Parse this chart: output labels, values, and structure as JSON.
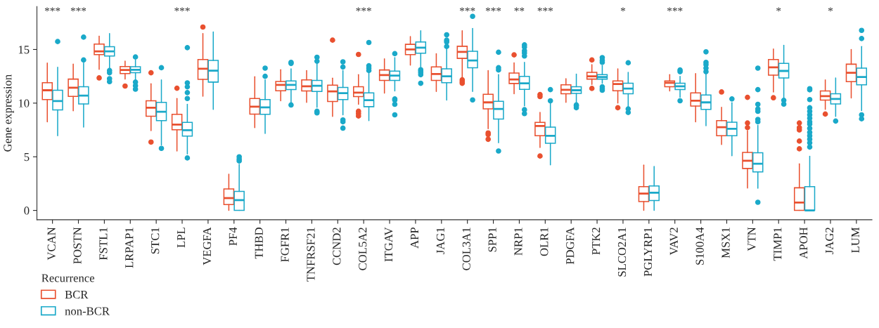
{
  "chart_data": {
    "type": "box",
    "ylabel": "Gene expression",
    "legend_title": "Recurrence",
    "legend": "bottom left",
    "grid": false,
    "ylim": [
      -0.87,
      19
    ],
    "yticks": [
      0,
      5,
      10,
      15
    ],
    "categories": [
      "VCAN",
      "POSTN",
      "FSTL1",
      "LRPAP1",
      "STC1",
      "LPL",
      "VEGFA",
      "PF4",
      "THBD",
      "FGFR1",
      "TNFRSF21",
      "CCND2",
      "COL5A2",
      "ITGAV",
      "APP",
      "JAG1",
      "COL3A1",
      "SPP1",
      "NRP1",
      "OLR1",
      "PDGFA",
      "PTK2",
      "SLCO2A1",
      "PGLYRP1",
      "VAV2",
      "S100A4",
      "MSX1",
      "VTN",
      "TIMP1",
      "APOH",
      "JAG2",
      "LUM"
    ],
    "series": [
      {
        "name": "BCR",
        "color": "#e9502f",
        "boxes": [
          {
            "low": 8.26,
            "q1": 10.33,
            "median": 11.2,
            "q3": 11.9,
            "high": 13.74
          },
          {
            "low": 9.28,
            "q1": 10.63,
            "median": 11.43,
            "q3": 12.24,
            "high": 13.63
          },
          {
            "low": 13.15,
            "q1": 14.52,
            "median": 14.83,
            "q3": 15.5,
            "high": 16.24,
            "outliers": [
              12.35
            ]
          },
          {
            "low": 12.24,
            "q1": 12.76,
            "median": 13.09,
            "q3": 13.41,
            "high": 13.91,
            "outliers": [
              11.59
            ]
          },
          {
            "low": 7.43,
            "q1": 8.78,
            "median": 9.57,
            "q3": 10.22,
            "high": 11.8,
            "outliers": [
              12.83,
              6.37
            ]
          },
          {
            "low": 5.54,
            "q1": 7.52,
            "median": 8.0,
            "q3": 8.96,
            "high": 10.43,
            "outliers": [
              11.39
            ]
          },
          {
            "low": 10.65,
            "q1": 12.22,
            "median": 13.2,
            "q3": 14.07,
            "high": 16.48,
            "outliers": [
              17.09
            ]
          },
          {
            "low": 0,
            "q1": 0.54,
            "median": 1.15,
            "q3": 2.0,
            "high": 3.37
          },
          {
            "low": 7.72,
            "q1": 8.98,
            "median": 9.67,
            "q3": 10.43,
            "high": 12.46
          },
          {
            "low": 10.22,
            "q1": 11.15,
            "median": 11.7,
            "q3": 12.02,
            "high": 13.11
          },
          {
            "low": 10.07,
            "q1": 11.13,
            "median": 11.57,
            "q3": 12.17,
            "high": 13.04
          },
          {
            "low": 8.76,
            "q1": 10.15,
            "median": 11.09,
            "q3": 11.67,
            "high": 12.33,
            "outliers": [
              15.87
            ]
          },
          {
            "low": 9.89,
            "q1": 10.61,
            "median": 10.98,
            "q3": 11.52,
            "high": 12.65,
            "outliers": [
              14.54,
              9.24,
              9.02,
              8.8
            ]
          },
          {
            "low": 10.93,
            "q1": 12.11,
            "median": 12.61,
            "q3": 13.09,
            "high": 14.13
          },
          {
            "low": 13.54,
            "q1": 14.52,
            "median": 15.0,
            "q3": 15.48,
            "high": 16.2
          },
          {
            "low": 11.09,
            "q1": 12.11,
            "median": 12.72,
            "q3": 13.37,
            "high": 14.61
          },
          {
            "low": 12.39,
            "q1": 14.17,
            "median": 14.78,
            "q3": 15.3,
            "high": 16.74,
            "outliers": [
              12.17,
              12.0,
              11.85
            ]
          },
          {
            "low": 7.61,
            "q1": 9.46,
            "median": 10.07,
            "q3": 10.83,
            "high": 13.04,
            "outliers": [
              7.22,
              7.07,
              6.63
            ]
          },
          {
            "low": 10.87,
            "q1": 11.83,
            "median": 12.2,
            "q3": 12.8,
            "high": 13.76,
            "outliers": [
              14.5
            ]
          },
          {
            "low": 5.87,
            "q1": 6.96,
            "median": 7.87,
            "q3": 8.2,
            "high": 9.13,
            "outliers": [
              10.8,
              10.61,
              5.07
            ]
          },
          {
            "low": 10.07,
            "q1": 10.87,
            "median": 11.24,
            "q3": 11.7,
            "high": 12.28
          },
          {
            "low": 11.74,
            "q1": 12.24,
            "median": 12.5,
            "q3": 12.87,
            "high": 13.59,
            "outliers": [
              14.02,
              11.37
            ]
          },
          {
            "low": 10.0,
            "q1": 11.15,
            "median": 11.78,
            "q3": 12.07,
            "high": 13.2,
            "outliers": [
              9.57
            ]
          },
          {
            "low": 0,
            "q1": 0.83,
            "median": 1.57,
            "q3": 2.22,
            "high": 4.22
          },
          {
            "low": 11.13,
            "q1": 11.52,
            "median": 11.89,
            "q3": 12.07,
            "high": 12.65
          },
          {
            "low": 8.26,
            "q1": 9.72,
            "median": 10.22,
            "q3": 10.96,
            "high": 12.76
          },
          {
            "low": 6.15,
            "q1": 6.96,
            "median": 7.76,
            "q3": 8.37,
            "high": 9.61,
            "outliers": [
              11.04
            ]
          },
          {
            "low": 2.09,
            "q1": 3.91,
            "median": 4.63,
            "q3": 5.41,
            "high": 7.43,
            "outliers": [
              10.54,
              8.15,
              7.72
            ]
          },
          {
            "low": 11.04,
            "q1": 12.61,
            "median": 13.33,
            "q3": 14.07,
            "high": 15.04,
            "outliers": [
              10.5
            ]
          },
          {
            "low": 0,
            "q1": 0,
            "median": 0.74,
            "q3": 2.11,
            "high": 4.35,
            "outliers": [
              8.15,
              7.72,
              7.5,
              6.46,
              5.74
            ]
          },
          {
            "low": 9.41,
            "q1": 10.28,
            "median": 10.65,
            "q3": 11.13,
            "high": 12.17,
            "outliers": [
              8.98
            ]
          },
          {
            "low": 10.48,
            "q1": 12.0,
            "median": 12.83,
            "q3": 13.63,
            "high": 15.0
          }
        ]
      },
      {
        "name": "non-BCR",
        "color": "#1aa9c9",
        "boxes": [
          {
            "low": 6.96,
            "q1": 9.37,
            "median": 10.2,
            "q3": 11.2,
            "high": 13.35,
            "outliers": [
              15.74
            ]
          },
          {
            "low": 7.76,
            "q1": 9.93,
            "median": 10.7,
            "q3": 11.52,
            "high": 13.74,
            "outliers": [
              16.15,
              14.02
            ]
          },
          {
            "low": 13.15,
            "q1": 14.39,
            "median": 14.83,
            "q3": 15.26,
            "high": 16.48,
            "outliers": [
              13.04,
              12.83,
              12.28,
              12.0
            ]
          },
          {
            "low": 12.07,
            "q1": 12.83,
            "median": 13.11,
            "q3": 13.39,
            "high": 14.02,
            "outliers": [
              14.3,
              11.96,
              11.63,
              11.3
            ]
          },
          {
            "low": 6.09,
            "q1": 8.37,
            "median": 9.2,
            "q3": 10.07,
            "high": 12.17,
            "outliers": [
              13.3,
              5.78
            ]
          },
          {
            "low": 5.26,
            "q1": 6.93,
            "median": 7.48,
            "q3": 8.2,
            "high": 9.89,
            "outliers": [
              15.17,
              11.89,
              11.52,
              10.98,
              10.43,
              4.89
            ]
          },
          {
            "low": 9.41,
            "q1": 11.96,
            "median": 13.02,
            "q3": 13.98,
            "high": 16.63
          },
          {
            "low": 0,
            "q1": 0,
            "median": 0.96,
            "q3": 1.78,
            "high": 4.3,
            "outliers": [
              5.0,
              4.78,
              4.61
            ]
          },
          {
            "low": 7.17,
            "q1": 8.96,
            "median": 9.61,
            "q3": 10.33,
            "high": 12.17,
            "outliers": [
              13.26,
              12.5
            ]
          },
          {
            "low": 10.04,
            "q1": 11.26,
            "median": 11.7,
            "q3": 12.07,
            "high": 13.2,
            "outliers": [
              13.8,
              13.7,
              9.83
            ]
          },
          {
            "low": 9.61,
            "q1": 11.09,
            "median": 11.61,
            "q3": 12.11,
            "high": 13.7,
            "outliers": [
              14.28,
              13.91,
              9.24,
              9.09
            ]
          },
          {
            "low": 8.91,
            "q1": 10.33,
            "median": 10.93,
            "q3": 11.46,
            "high": 13.04,
            "outliers": [
              13.85,
              13.37,
              8.43,
              8.26,
              7.67
            ]
          },
          {
            "low": 8.37,
            "q1": 9.67,
            "median": 10.28,
            "q3": 10.96,
            "high": 12.83,
            "outliers": [
              15.65,
              13.48,
              13.26,
              13.04
            ]
          },
          {
            "low": 11.13,
            "q1": 12.11,
            "median": 12.57,
            "q3": 12.98,
            "high": 14.24,
            "outliers": [
              14.61,
              10.39,
              10.28,
              9.89,
              8.91
            ]
          },
          {
            "low": 13.26,
            "q1": 14.65,
            "median": 15.17,
            "q3": 15.7,
            "high": 16.74,
            "outliers": [
              13.11,
              12.98,
              12.83,
              12.65,
              11.85
            ]
          },
          {
            "low": 10.28,
            "q1": 11.91,
            "median": 12.5,
            "q3": 13.2,
            "high": 15.11,
            "outliers": [
              16.37,
              15.87,
              15.7,
              15.28
            ]
          },
          {
            "low": 11.09,
            "q1": 13.3,
            "median": 13.98,
            "q3": 14.83,
            "high": 16.96,
            "outliers": [
              18.09,
              10.3
            ]
          },
          {
            "low": 6.3,
            "q1": 8.52,
            "median": 9.46,
            "q3": 10.17,
            "high": 12.65,
            "outliers": [
              14.74,
              13.3,
              13.09,
              5.54
            ]
          },
          {
            "low": 9.74,
            "q1": 11.28,
            "median": 11.85,
            "q3": 12.5,
            "high": 13.8,
            "outliers": [
              15.43,
              15.22,
              14.89,
              14.67,
              14.39,
              9.39,
              9.02
            ]
          },
          {
            "low": 4.24,
            "q1": 6.26,
            "median": 6.96,
            "q3": 7.76,
            "high": 10.0,
            "outliers": [
              11.26,
              10.22
            ]
          },
          {
            "low": 10.0,
            "q1": 10.91,
            "median": 11.2,
            "q3": 11.52,
            "high": 12.7,
            "outliers": [
              9.83,
              9.74,
              9.57
            ]
          },
          {
            "low": 11.85,
            "q1": 12.24,
            "median": 12.43,
            "q3": 12.65,
            "high": 13.5,
            "outliers": [
              14.24,
              13.98,
              13.8,
              11.52,
              11.35,
              11.2
            ]
          },
          {
            "low": 9.52,
            "q1": 10.87,
            "median": 11.35,
            "q3": 11.85,
            "high": 12.87,
            "outliers": [
              13.76,
              9.46,
              9.13
            ]
          },
          {
            "low": 0,
            "q1": 0.93,
            "median": 1.65,
            "q3": 2.28,
            "high": 4.09
          },
          {
            "low": 10.54,
            "q1": 11.26,
            "median": 11.57,
            "q3": 11.85,
            "high": 12.5,
            "outliers": [
              13.09,
              12.93,
              10.22
            ]
          },
          {
            "low": 7.89,
            "q1": 9.41,
            "median": 10.07,
            "q3": 10.76,
            "high": 12.7,
            "outliers": [
              14.78,
              13.8,
              13.59,
              13.26,
              12.93
            ]
          },
          {
            "low": 5.09,
            "q1": 6.96,
            "median": 7.61,
            "q3": 8.22,
            "high": 10.04,
            "outliers": [
              10.39
            ]
          },
          {
            "low": 2.07,
            "q1": 3.59,
            "median": 4.35,
            "q3": 5.37,
            "high": 7.93,
            "outliers": [
              13.26,
              11.26,
              9.89,
              9.46,
              9.24,
              8.48,
              8.26,
              0.76
            ]
          },
          {
            "low": 10.43,
            "q1": 12.35,
            "median": 13.0,
            "q3": 13.7,
            "high": 15.39,
            "outliers": [
              10.26,
              9.91
            ]
          },
          {
            "low": 0,
            "q1": 0,
            "median": 0,
            "q3": 2.22,
            "high": 5.04,
            "outliers": [
              11.35,
              11.24,
              10.33,
              9.57,
              9.24,
              8.91,
              8.59,
              8.26,
              8.04,
              7.65,
              7.28,
              6.96,
              6.63,
              6.3,
              5.91
            ]
          },
          {
            "low": 8.76,
            "q1": 9.93,
            "median": 10.39,
            "q3": 10.87,
            "high": 12.35,
            "outliers": [
              8.33
            ]
          },
          {
            "low": 9.3,
            "q1": 11.7,
            "median": 12.43,
            "q3": 13.26,
            "high": 15.28,
            "outliers": [
              16.78,
              16.02,
              8.91,
              8.54
            ]
          }
        ]
      }
    ],
    "value_labels": [
      "***",
      "***",
      null,
      null,
      null,
      "***",
      null,
      null,
      null,
      null,
      null,
      null,
      "***",
      null,
      null,
      null,
      "***",
      "***",
      "**",
      "***",
      null,
      null,
      "*",
      null,
      "***",
      null,
      null,
      null,
      "*",
      null,
      "*",
      null
    ]
  }
}
